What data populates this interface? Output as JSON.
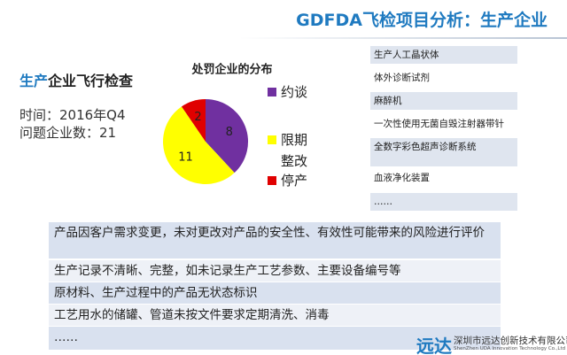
{
  "header": {
    "title": "GDFDA飞检项目分析：生产企业"
  },
  "summary": {
    "heading_highlight": "生产",
    "heading_rest": "企业飞行检查",
    "time": "时间：2016年Q4",
    "count": "问题企业数：21"
  },
  "chart_data": {
    "type": "pie",
    "title": "处罚企业的分布",
    "categories": [
      "约谈",
      "限期整改",
      "停产"
    ],
    "values": [
      8,
      11,
      2
    ],
    "colors": [
      "#7030a0",
      "#ffff00",
      "#e00000"
    ]
  },
  "products": [
    "生产人工晶状体",
    "体外诊断试剂",
    "麻醉机",
    "一次性使用无菌自毁注射器带针",
    "全数字彩色超声诊断系统",
    "血液净化装置",
    "……"
  ],
  "issues": [
    "产品因客户需求变更，未对更改对产品的安全性、有效性可能带来的风险进行评价",
    "生产记录不清晰、完整，如未记录生产工艺参数、主要设备编号等",
    "原材料、生产过程中的产品无状态标识",
    "工艺用水的储罐、管道未按文件要求定期清洗、消毒",
    "……"
  ],
  "footer": {
    "logo": "远达",
    "company_cn": "深圳市远达创新技术有限公司",
    "company_en": "ShenZhen UDA Innovation Technology Co.,Ltd"
  }
}
